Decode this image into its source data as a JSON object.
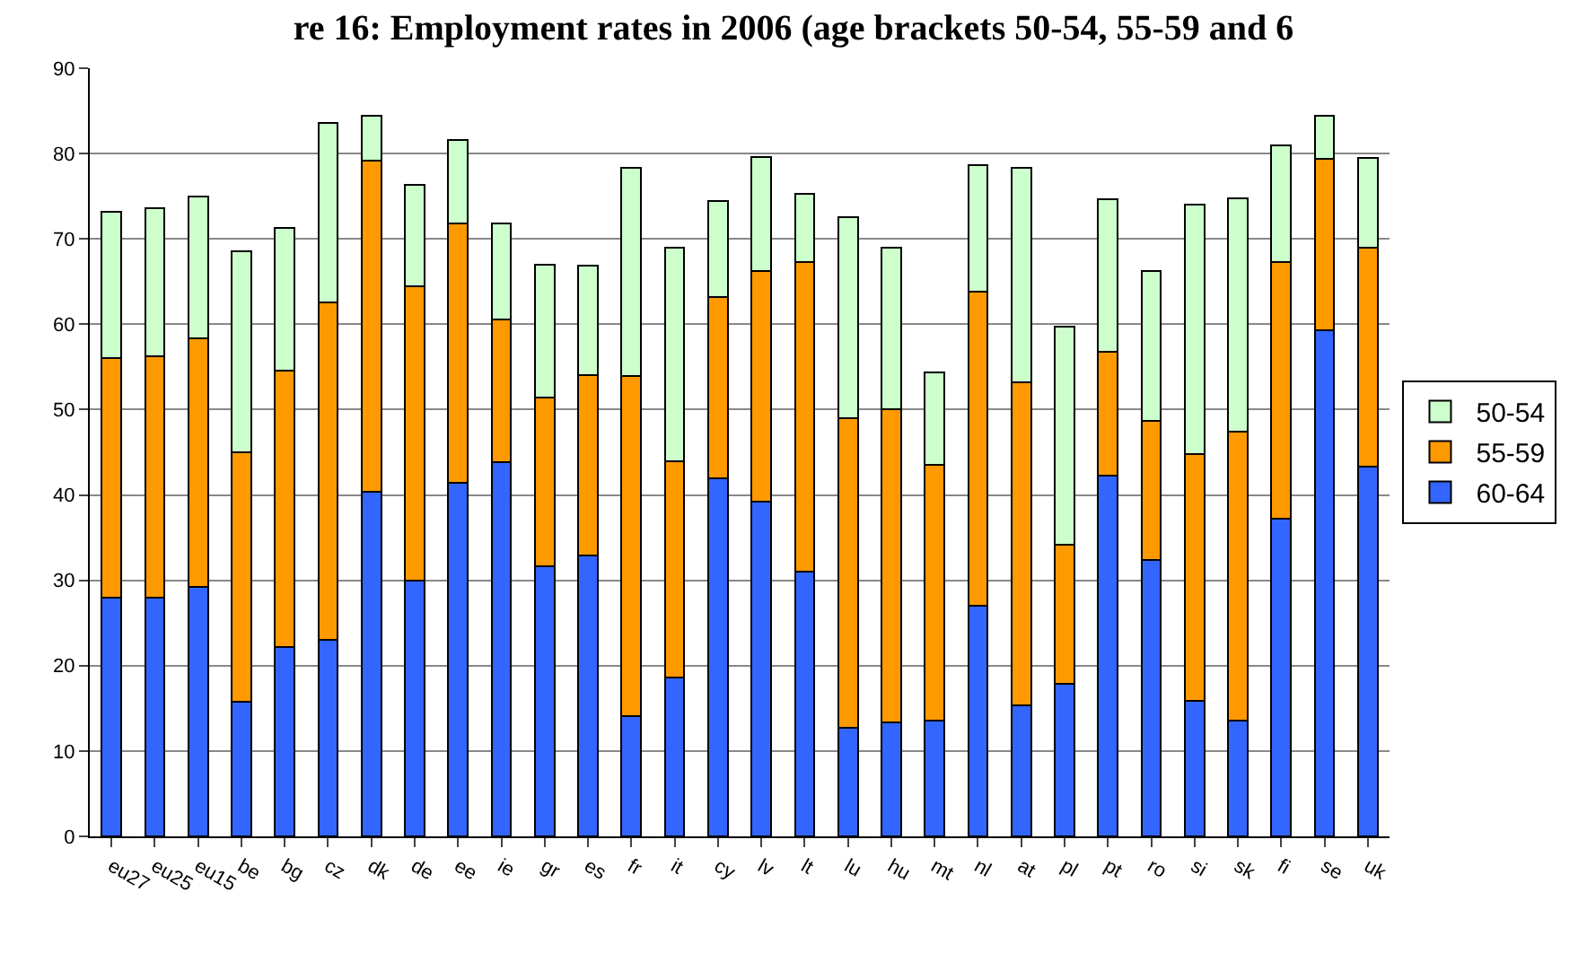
{
  "chart_data": {
    "type": "bar",
    "stacked": true,
    "title": "re 16: Employment rates in 2006 (age brackets 50-54, 55-59 and 6",
    "categories": [
      "eu27",
      "eu25",
      "eu15",
      "be",
      "bg",
      "cz",
      "dk",
      "de",
      "ee",
      "ie",
      "gr",
      "es",
      "fr",
      "it",
      "cy",
      "lv",
      "lt",
      "lu",
      "hu",
      "mt",
      "nl",
      "at",
      "pl",
      "pt",
      "ro",
      "si",
      "sk",
      "fi",
      "se",
      "uk"
    ],
    "series": [
      {
        "name": "60-64",
        "color": "#3366ff",
        "values": [
          28,
          28,
          29.2,
          15.8,
          22.2,
          23,
          40.4,
          30,
          41.4,
          43.8,
          31.7,
          32.9,
          14.1,
          18.6,
          42,
          39.2,
          31,
          12.7,
          13.4,
          13.6,
          27,
          15.3,
          17.9,
          42.3,
          32.4,
          15.9,
          13.6,
          37.2,
          59.3,
          43.3
        ]
      },
      {
        "name": "55-59",
        "color": "#ff9900",
        "values": [
          28,
          28.2,
          29.2,
          29.2,
          32.4,
          39.6,
          38.8,
          34.5,
          30.4,
          16.8,
          19.7,
          21.1,
          39.8,
          25.3,
          21.2,
          27,
          36.3,
          36.3,
          36.6,
          29.9,
          36.8,
          37.9,
          16.3,
          14.5,
          16.3,
          28.9,
          33.8,
          30.1,
          20.1,
          25.7
        ]
      },
      {
        "name": "50-54",
        "color": "#ccffcc",
        "values": [
          17.2,
          17.4,
          16.6,
          23.6,
          16.7,
          21,
          5.2,
          11.8,
          9.8,
          11.2,
          15.6,
          12.9,
          24.4,
          25.1,
          11.2,
          13.4,
          8,
          23.6,
          19,
          10.9,
          14.8,
          25.1,
          25.5,
          17.9,
          17.5,
          29.2,
          27.4,
          13.7,
          5,
          10.5
        ]
      }
    ],
    "ylim": [
      0,
      90
    ],
    "yticks": [
      0,
      10,
      20,
      30,
      40,
      50,
      60,
      70,
      80,
      90
    ],
    "grid": "y",
    "legend": "right"
  }
}
